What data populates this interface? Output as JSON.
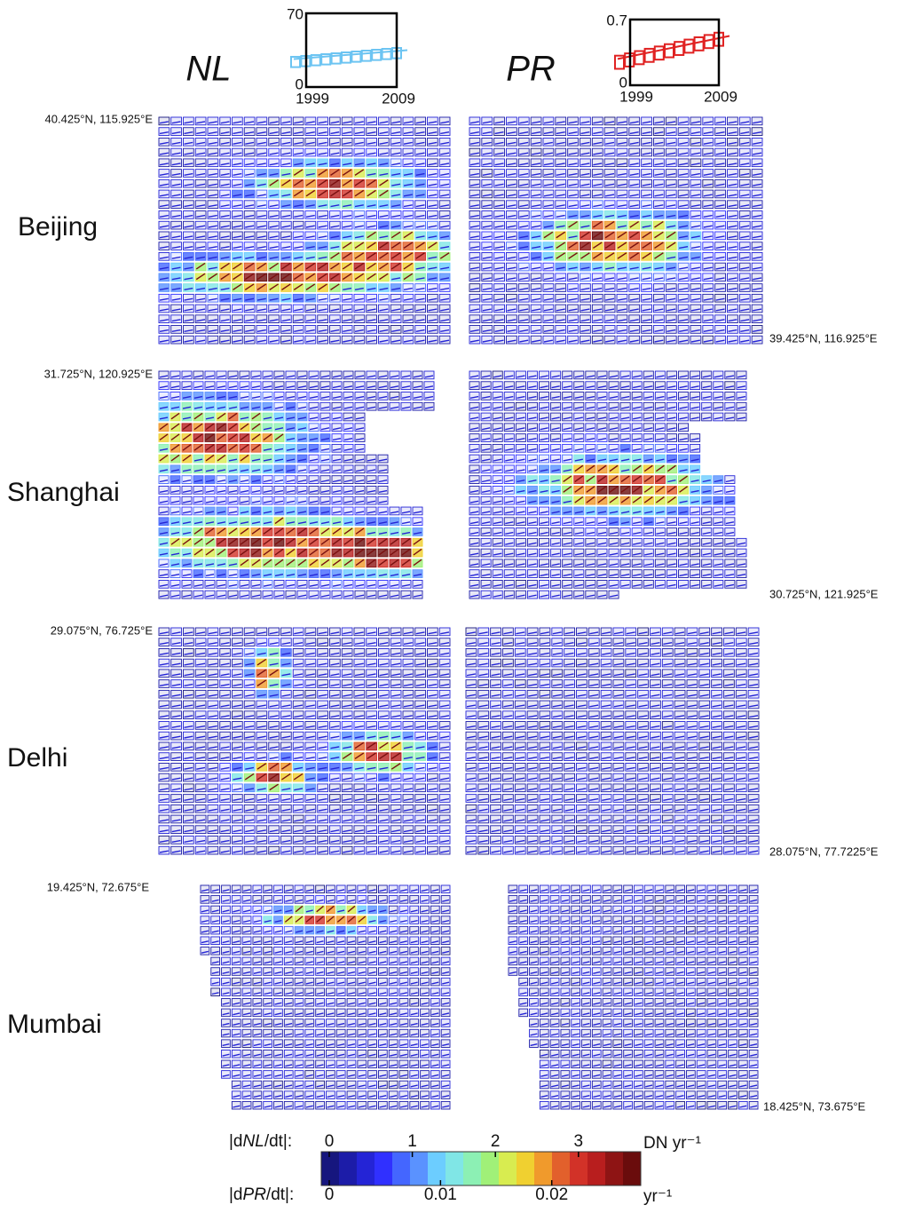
{
  "insets": [
    {
      "name": "NL",
      "color": "#6cc4f2",
      "ylim": [
        0,
        70
      ],
      "xticks": [
        1999,
        2009
      ]
    },
    {
      "name": "PR",
      "color": "#e02222",
      "ylim": [
        0,
        0.7
      ],
      "xticks": [
        1999,
        2009
      ]
    }
  ],
  "cities": [
    {
      "name": "Beijing",
      "nw": "40.425°N, 115.925°E",
      "se": "39.425°N, 116.925°E"
    },
    {
      "name": "Shanghai",
      "nw": "31.725°N, 120.925°E",
      "se": "30.725°N, 121.925°E"
    },
    {
      "name": "Delhi",
      "nw": "29.075°N, 76.725°E",
      "se": "28.075°N, 77.7225°E"
    },
    {
      "name": "Mumbai",
      "nw": "19.425°N, 72.675°E",
      "se": "18.425°N, 73.675°E"
    }
  ],
  "colorbar": {
    "colors": [
      "#16167e",
      "#1c1ca8",
      "#2424d6",
      "#3030ff",
      "#4466ff",
      "#5a92ff",
      "#6ccdff",
      "#80e6e6",
      "#8cf0b4",
      "#a0f078",
      "#d8ec50",
      "#f0d030",
      "#f09a2c",
      "#e2602c",
      "#d23228",
      "#b81e1e",
      "#8e1414",
      "#6a0c0c"
    ],
    "nl": {
      "label_pre": "|d",
      "label_var": "NL",
      "label_post": "/dt|:",
      "lim": [
        0,
        3.75
      ],
      "ticks": [
        0,
        1,
        2,
        3
      ],
      "unit": "DN yr⁻¹"
    },
    "pr": {
      "label_pre": "|d",
      "label_var": "PR",
      "label_post": "/dt|:",
      "lim": [
        0,
        0.028
      ],
      "ticks": [
        0,
        0.01,
        0.02
      ],
      "unit": "yr⁻¹"
    }
  }
}
